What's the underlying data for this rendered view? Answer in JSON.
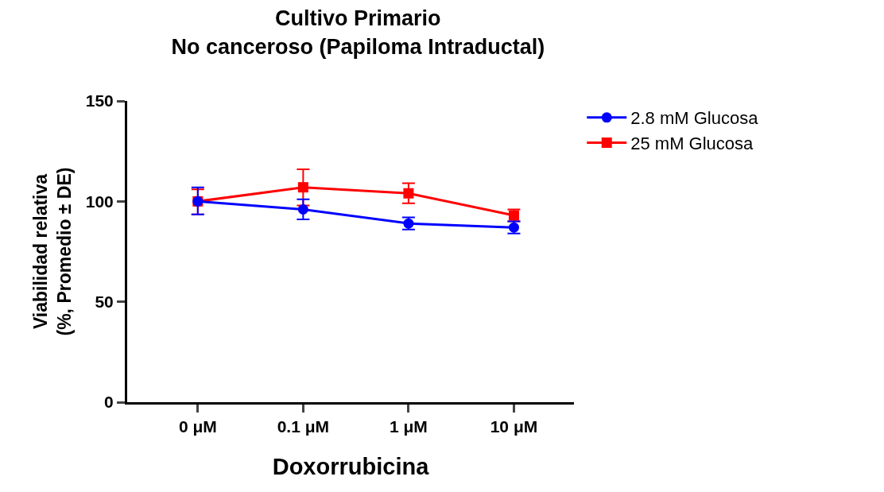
{
  "chart_data": {
    "type": "line",
    "title": "Cultivo Primario\nNo canceroso (Papiloma Intraductal)",
    "xlabel": "Doxorrubicina",
    "ylabel": "Viabilidad relativa\n(%, Promedio ± DE)",
    "categories": [
      "0 μM",
      "0.1 μM",
      "1 μM",
      "10 μM"
    ],
    "series": [
      {
        "name": "2.8 mM Glucosa",
        "color": "#0000ff",
        "marker": "circle",
        "values": [
          100,
          96,
          89,
          87
        ],
        "errors": [
          [
            93.5,
            107
          ],
          5,
          3,
          3
        ]
      },
      {
        "name": "25 mM Glucosa",
        "color": "#ff0000",
        "marker": "square",
        "values": [
          100,
          107,
          104,
          93
        ],
        "errors": [
          [
            93.5,
            106
          ],
          9,
          5,
          3
        ]
      }
    ],
    "ylim": [
      0,
      150
    ],
    "yticks": [
      0,
      50,
      100,
      150
    ],
    "grid": false,
    "legend": "top right"
  }
}
